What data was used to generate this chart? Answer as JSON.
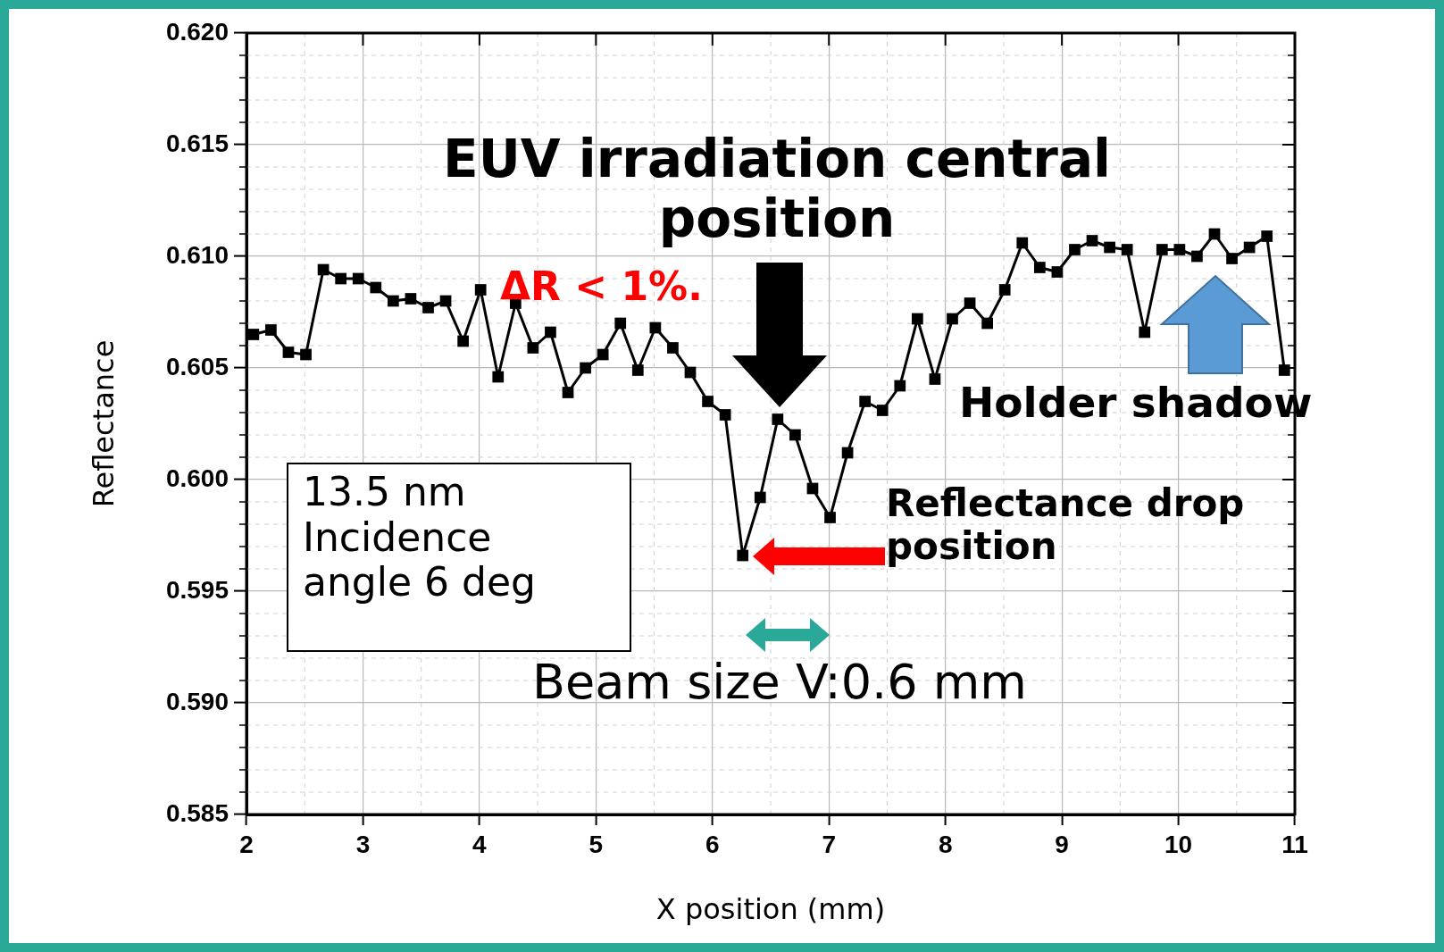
{
  "chart_data": {
    "type": "line",
    "xlabel": "X position (mm)",
    "ylabel": "Reflectance",
    "x": [
      2.06,
      2.21,
      2.36,
      2.51,
      2.66,
      2.81,
      2.96,
      3.11,
      3.26,
      3.41,
      3.56,
      3.71,
      3.86,
      4.01,
      4.16,
      4.31,
      4.46,
      4.61,
      4.76,
      4.91,
      5.06,
      5.21,
      5.36,
      5.51,
      5.66,
      5.81,
      5.96,
      6.11,
      6.26,
      6.41,
      6.56,
      6.71,
      6.86,
      7.01,
      7.16,
      7.31,
      7.46,
      7.61,
      7.76,
      7.91,
      8.06,
      8.21,
      8.36,
      8.51,
      8.66,
      8.81,
      8.96,
      9.11,
      9.26,
      9.41,
      9.56,
      9.71,
      9.86,
      10.01,
      10.16,
      10.31,
      10.46,
      10.61,
      10.76,
      10.91
    ],
    "series": [
      {
        "color": "#000000",
        "values": [
          0.6065,
          0.6067,
          0.6057,
          0.6056,
          0.6094,
          0.609,
          0.609,
          0.6086,
          0.608,
          0.6081,
          0.6077,
          0.608,
          0.6062,
          0.6085,
          0.6046,
          0.6079,
          0.6059,
          0.6066,
          0.6039,
          0.605,
          0.6056,
          0.607,
          0.6049,
          0.6068,
          0.6059,
          0.6048,
          0.6035,
          0.6029,
          0.5966,
          0.5992,
          0.6027,
          0.602,
          0.5996,
          0.5983,
          0.6012,
          0.6035,
          0.6031,
          0.6042,
          0.6072,
          0.6045,
          0.6072,
          0.6079,
          0.607,
          0.6085,
          0.6106,
          0.6095,
          0.6093,
          0.6103,
          0.6107,
          0.6104,
          0.6103,
          0.6066,
          0.6103,
          0.6103,
          0.61,
          0.611,
          0.6099,
          0.6104,
          0.6109,
          0.6049
        ]
      }
    ],
    "xlim": [
      2,
      11
    ],
    "xticks": [
      2,
      3,
      4,
      5,
      6,
      7,
      8,
      9,
      10,
      11
    ],
    "ylim": [
      0.585,
      0.62
    ],
    "yticks": [
      {
        "value": 0.585,
        "label": "0.585"
      },
      {
        "value": 0.59,
        "label": "0.590"
      },
      {
        "value": 0.595,
        "label": "0.595"
      },
      {
        "value": 0.6,
        "label": "0.600"
      },
      {
        "value": 0.605,
        "label": "0.605"
      },
      {
        "value": 0.61,
        "label": "0.610"
      },
      {
        "value": 0.615,
        "label": "0.615"
      },
      {
        "value": 0.62,
        "label": "0.620"
      }
    ],
    "grid": true,
    "legend": false,
    "marker": "square",
    "line_style": "solid",
    "annotations": [
      "EUV irradiation central position",
      "ΔR < 1%.",
      "Holder shadow",
      "Reflectance drop position",
      "13.5 nm\nIncidence\nangle 6 deg",
      "Beam size V:0.6 mm"
    ]
  }
}
